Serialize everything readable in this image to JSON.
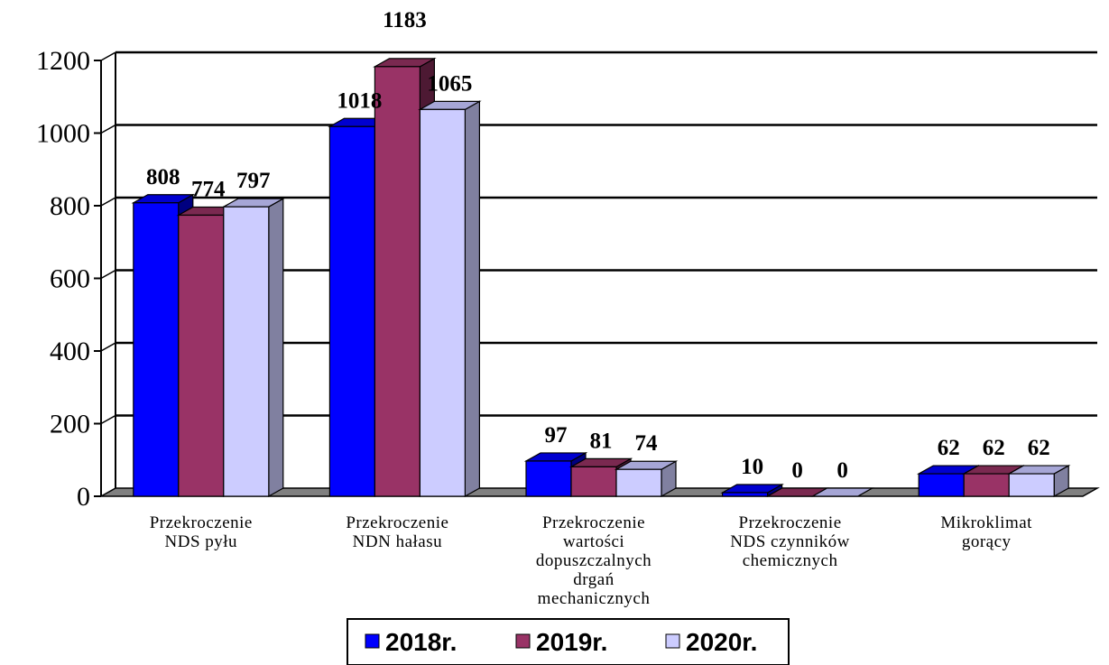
{
  "chart_data": {
    "type": "bar",
    "categories": [
      [
        "Przekroczenie",
        "NDS pyłu"
      ],
      [
        "Przekroczenie",
        "NDN hałasu"
      ],
      [
        "Przekroczenie",
        "wartości",
        "dopuszczalnych",
        "drgań",
        "mechanicznych"
      ],
      [
        "Przekroczenie",
        "NDS czynników",
        "chemicznych"
      ],
      [
        "Mikroklimat",
        "gorący"
      ]
    ],
    "series": [
      {
        "name": "2018r.",
        "values": [
          808,
          1018,
          97,
          10,
          62
        ],
        "color": "#0000ff",
        "side_color": "#000080",
        "top_color": "#0000d0"
      },
      {
        "name": "2019r.",
        "values": [
          774,
          1183,
          81,
          0,
          62
        ],
        "color": "#993366",
        "side_color": "#4d1933",
        "top_color": "#7a2950"
      },
      {
        "name": "2020r.",
        "values": [
          797,
          1065,
          74,
          0,
          62
        ],
        "color": "#ccccff",
        "side_color": "#8080a0",
        "top_color": "#a6a6d6"
      }
    ],
    "ylim": [
      0,
      1200
    ],
    "yticks": [
      "0",
      "200",
      "400",
      "600",
      "800",
      "1000",
      "1200"
    ],
    "grid": true,
    "legend_position": "bottom-center",
    "title": "",
    "xlabel": "",
    "ylabel": ""
  }
}
